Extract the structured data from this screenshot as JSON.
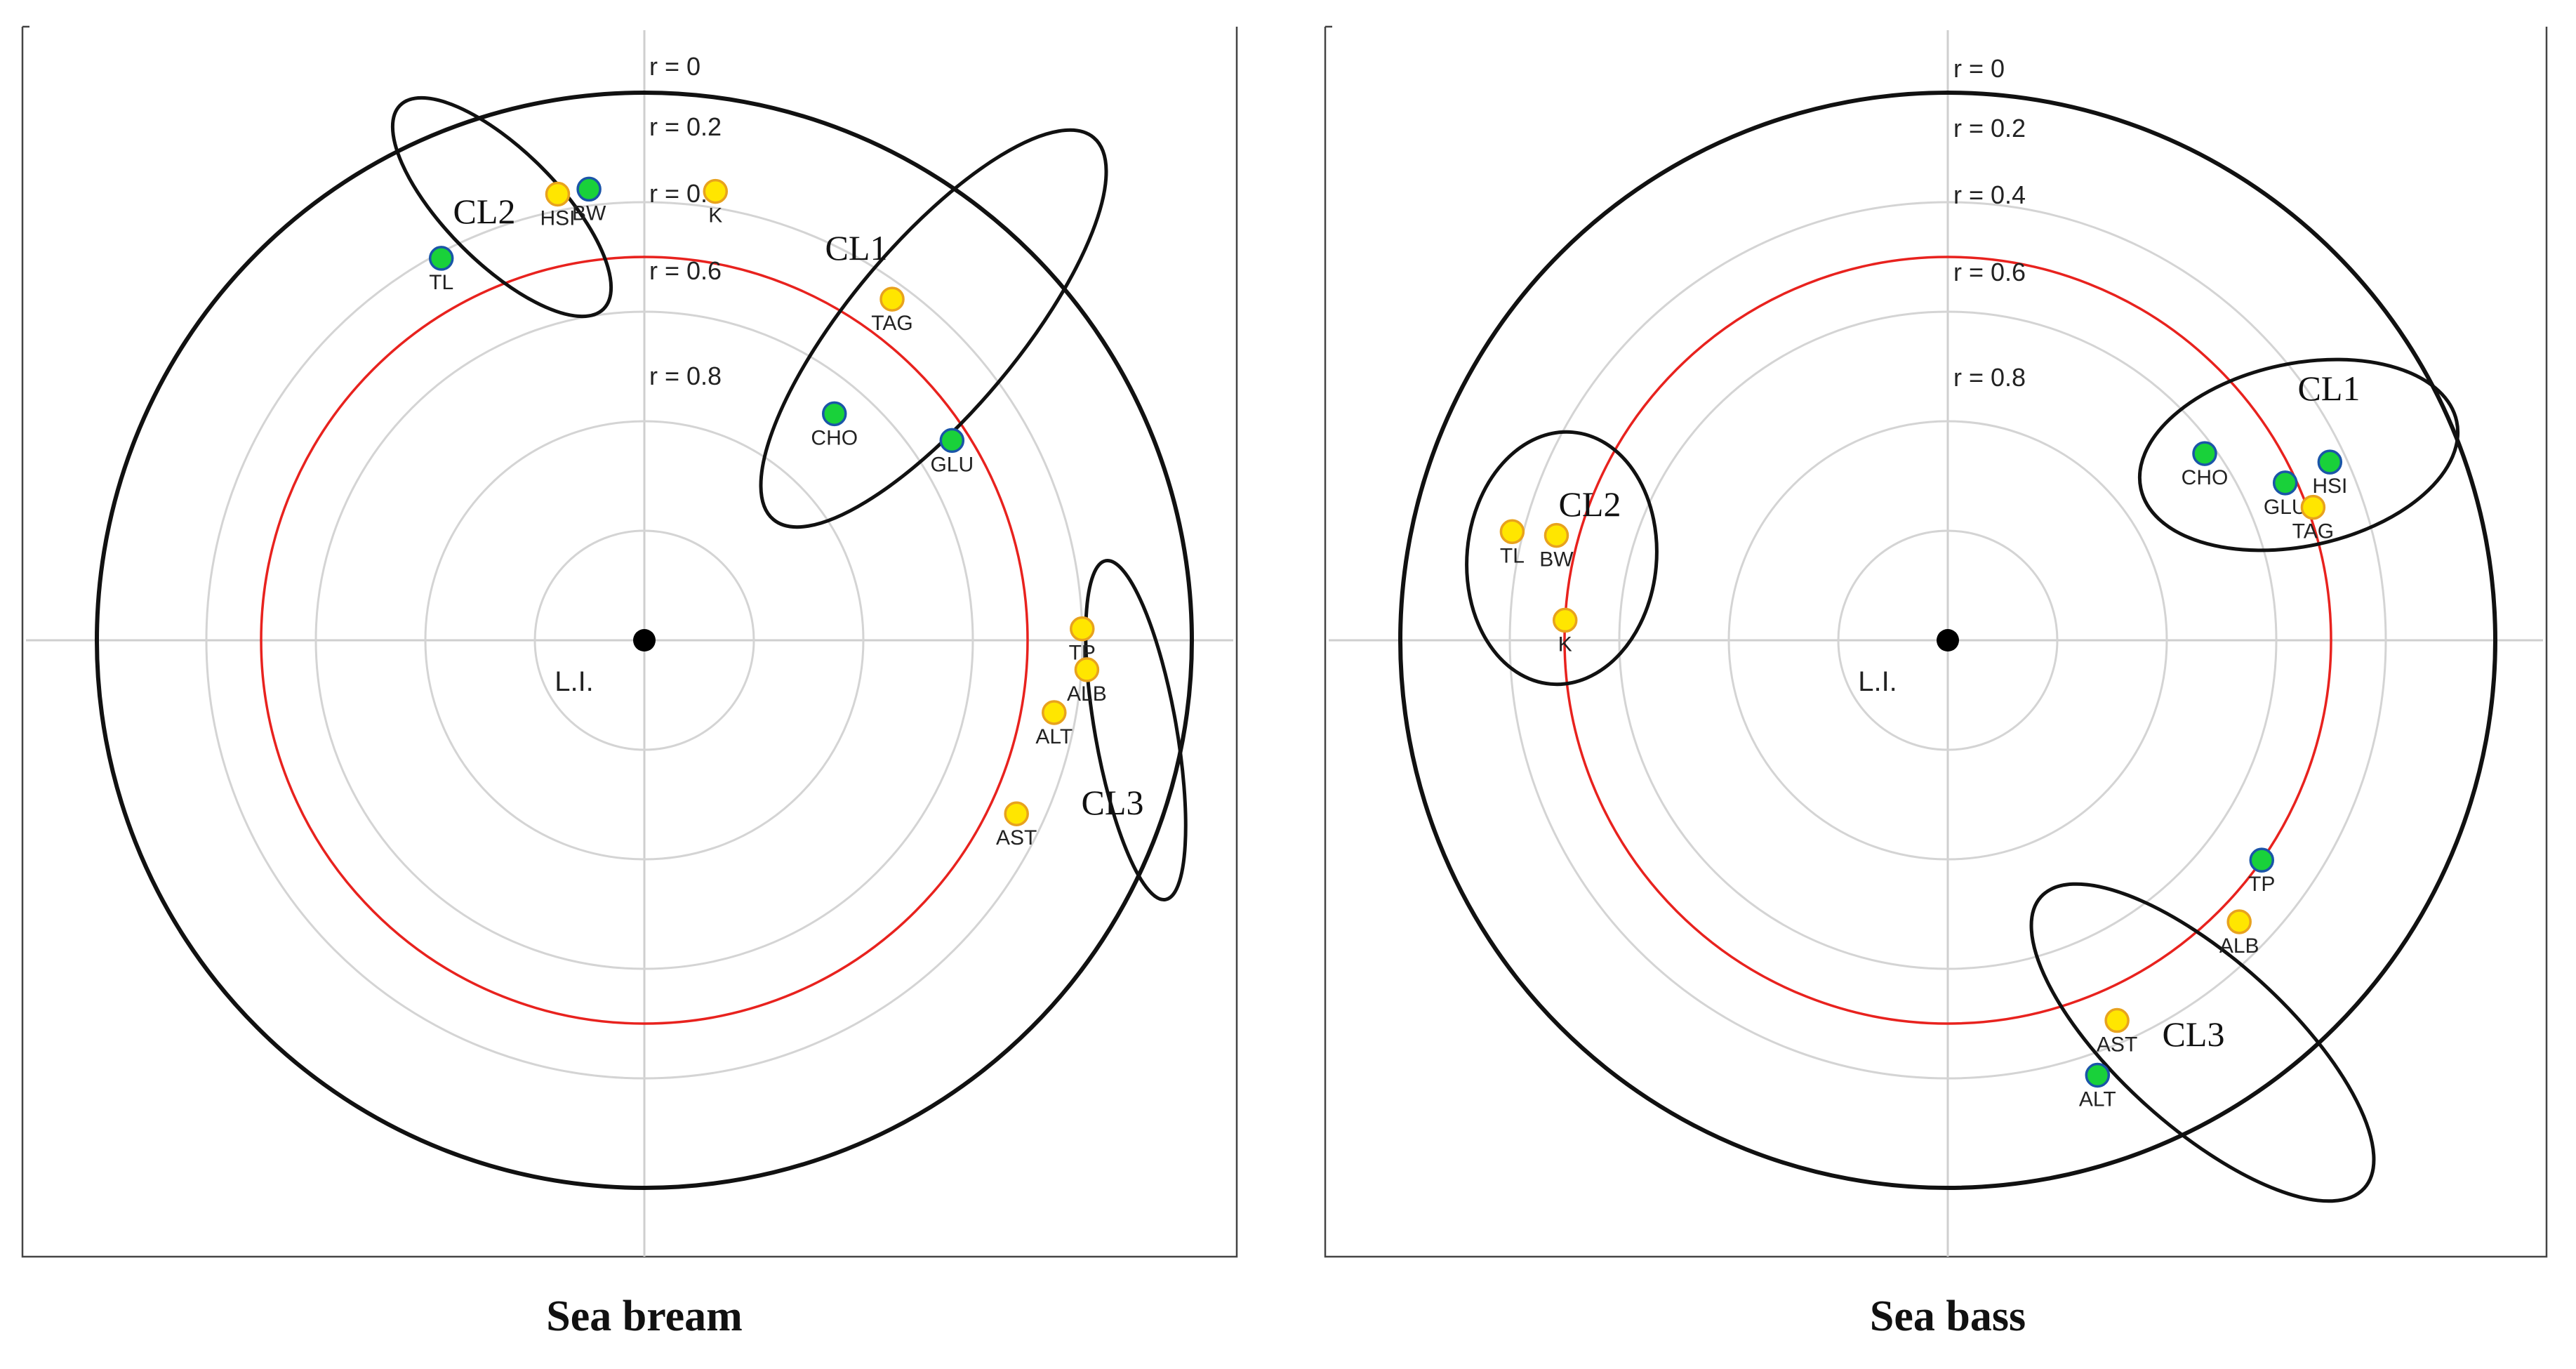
{
  "chart_data": [
    {
      "type": "scatter",
      "coordinate_system": "polar correlation circle",
      "title": "Sea bream",
      "center_label": "L.I.",
      "ring_labels": [
        "r = 0",
        "r = 0.2",
        "r = 0.4",
        "r = 0.6",
        "r = 0.8"
      ],
      "rings_r": [
        0.2,
        0.4,
        0.6,
        0.8
      ],
      "critical_r": 0.3,
      "marker_colors": {
        "positive": "#19d13a",
        "negative": "#ffe600",
        "negative_outline": "#e8a21e",
        "positive_outline": "#1a55a8"
      },
      "points": [
        {
          "label": "BW",
          "r": 0.17,
          "angle_deg": 97,
          "sign": "positive"
        },
        {
          "label": "HSI",
          "r": 0.17,
          "angle_deg": 101,
          "sign": "negative"
        },
        {
          "label": "TL",
          "r": 0.21,
          "angle_deg": 118,
          "sign": "positive"
        },
        {
          "label": "K",
          "r": 0.17,
          "angle_deg": 81,
          "sign": "negative"
        },
        {
          "label": "TAG",
          "r": 0.23,
          "angle_deg": 54,
          "sign": "negative"
        },
        {
          "label": "CHO",
          "r": 0.46,
          "angle_deg": 50,
          "sign": "positive"
        },
        {
          "label": "GLU",
          "r": 0.33,
          "angle_deg": 33,
          "sign": "positive"
        },
        {
          "label": "TP",
          "r": 0.2,
          "angle_deg": 1.5,
          "sign": "negative"
        },
        {
          "label": "ALB",
          "r": 0.19,
          "angle_deg": -3.8,
          "sign": "negative"
        },
        {
          "label": "ALT",
          "r": 0.24,
          "angle_deg": -10,
          "sign": "negative"
        },
        {
          "label": "AST",
          "r": 0.25,
          "angle_deg": -25,
          "sign": "negative"
        }
      ],
      "clusters": [
        {
          "label": "CL1",
          "members": [
            "K",
            "TAG",
            "CHO",
            "GLU"
          ]
        },
        {
          "label": "CL2",
          "members": [
            "BW",
            "HSI",
            "TL"
          ]
        },
        {
          "label": "CL3",
          "members": [
            "TP",
            "ALB",
            "ALT",
            "AST"
          ]
        }
      ]
    },
    {
      "type": "scatter",
      "coordinate_system": "polar correlation circle",
      "title": "Sea bass",
      "center_label": "L.I.",
      "ring_labels": [
        "r = 0",
        "r = 0.2",
        "r = 0.4",
        "r = 0.6",
        "r = 0.8"
      ],
      "rings_r": [
        0.2,
        0.4,
        0.6,
        0.8
      ],
      "critical_r": 0.3,
      "marker_colors": {
        "positive": "#19d13a",
        "negative": "#ffe600",
        "negative_outline": "#e8a21e",
        "positive_outline": "#1a55a8"
      },
      "points": [
        {
          "label": "CHO",
          "r": 0.42,
          "angle_deg": 36,
          "sign": "positive"
        },
        {
          "label": "GLU",
          "r": 0.32,
          "angle_deg": 25,
          "sign": "positive"
        },
        {
          "label": "HSI",
          "r": 0.23,
          "angle_deg": 25,
          "sign": "positive"
        },
        {
          "label": "TAG",
          "r": 0.29,
          "angle_deg": 20,
          "sign": "negative"
        },
        {
          "label": "TL",
          "r": 0.18,
          "angle_deg": 166,
          "sign": "negative"
        },
        {
          "label": "BW",
          "r": 0.26,
          "angle_deg": 165,
          "sign": "negative"
        },
        {
          "label": "K",
          "r": 0.3,
          "angle_deg": 177,
          "sign": "negative"
        },
        {
          "label": "TP",
          "r": 0.3,
          "angle_deg": -35,
          "sign": "positive"
        },
        {
          "label": "ALB",
          "r": 0.26,
          "angle_deg": -44,
          "sign": "negative"
        },
        {
          "label": "AST",
          "r": 0.24,
          "angle_deg": -66,
          "sign": "negative"
        },
        {
          "label": "ALT",
          "r": 0.16,
          "angle_deg": -71,
          "sign": "positive"
        }
      ],
      "clusters": [
        {
          "label": "CL1",
          "members": [
            "CHO",
            "GLU",
            "HSI",
            "TAG"
          ]
        },
        {
          "label": "CL2",
          "members": [
            "TL",
            "BW",
            "K"
          ]
        },
        {
          "label": "CL3",
          "members": [
            "TP",
            "ALB",
            "AST",
            "ALT"
          ]
        }
      ]
    }
  ]
}
